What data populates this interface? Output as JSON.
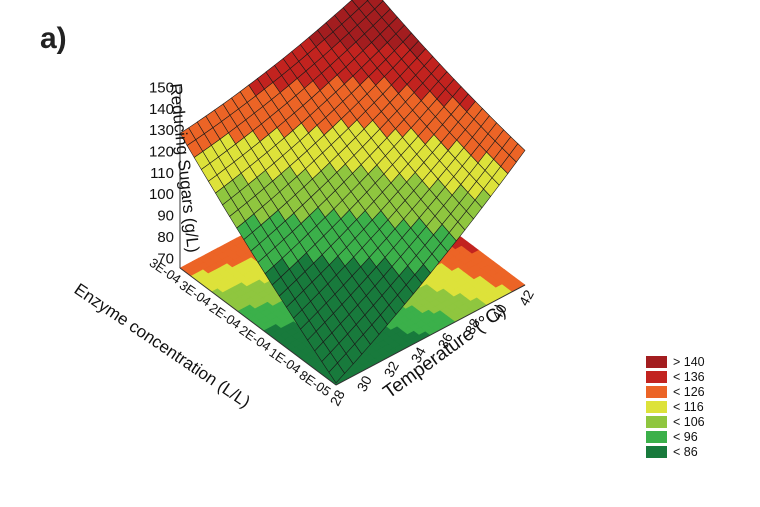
{
  "panel_label": "a)",
  "chart_data": {
    "type": "surface3d",
    "title": "",
    "zlabel": "Reducing Sugars (g/L)",
    "xlabel": "Temperature (°C)",
    "ylabel": "Enzyme concentration  (L/L)",
    "x_ticks": [
      "28",
      "30",
      "32",
      "34",
      "36",
      "38",
      "40",
      "42"
    ],
    "y_ticks": [
      "8E-05",
      "1E-04",
      "2E-04",
      "2E-04",
      "3E-04",
      "3E-04"
    ],
    "z_ticks": [
      "70",
      "80",
      "90",
      "100",
      "110",
      "120",
      "130",
      "140",
      "150"
    ],
    "xlim": [
      28,
      42
    ],
    "ylim": [
      8e-05,
      0.00032
    ],
    "zlim": [
      65,
      150
    ],
    "corner_values": [
      {
        "temperature": 28,
        "enzyme": 8e-05,
        "reducing_sugars": 66
      },
      {
        "temperature": 42,
        "enzyme": 8e-05,
        "reducing_sugars": 128
      },
      {
        "temperature": 28,
        "enzyme": 0.00032,
        "reducing_sugars": 128
      },
      {
        "temperature": 42,
        "enzyme": 0.00032,
        "reducing_sugars": 151
      }
    ],
    "legend": {
      "placement": "bottom-right",
      "items": [
        {
          "label": "> 140",
          "color": "#a31d1f"
        },
        {
          "label": "< 136",
          "color": "#c2231f"
        },
        {
          "label": "< 126",
          "color": "#ec6426"
        },
        {
          "label": "< 116",
          "color": "#dde23a"
        },
        {
          "label": "< 106",
          "color": "#8fc63f"
        },
        {
          "label": "< 96",
          "color": "#3bb04a"
        },
        {
          "label": "< 86",
          "color": "#187a3c"
        }
      ]
    }
  }
}
